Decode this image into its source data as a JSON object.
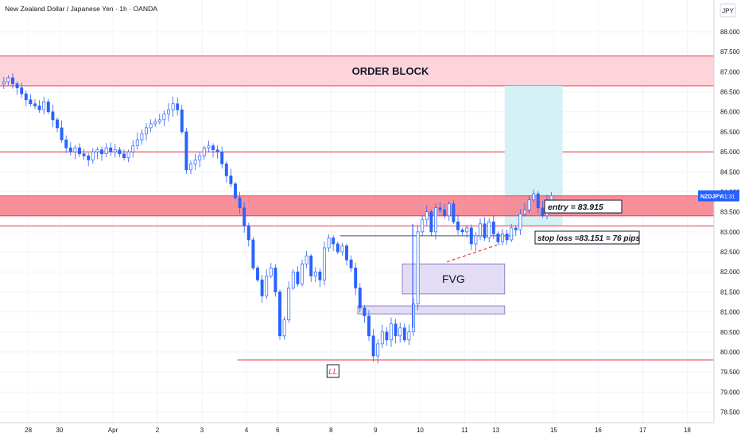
{
  "header": {
    "title": "New Zealand Dollar / Japanese Yen · 1h · OANDA",
    "currency": "JPY"
  },
  "colors": {
    "up": "#2962ff",
    "down": "#2962ff",
    "zone_line": "#f23645",
    "order_block_fill": "#fcd4da",
    "entry_zone_fill": "#f77c8a",
    "target_fill": "#d4f1f5",
    "fvg_fill": "#e2dcf5",
    "fvg_border": "#7b6bb5"
  },
  "chart_data": {
    "type": "candlestick",
    "title": "New Zealand Dollar / Japanese Yen · 1h · OANDA",
    "symbol": "NZDJPY",
    "countdown": "41:31",
    "ylim": [
      78.25,
      88.25
    ],
    "y_ticks": [
      "88.000",
      "87.500",
      "87.000",
      "86.500",
      "86.000",
      "85.500",
      "85.000",
      "84.500",
      "84.000",
      "83.500",
      "83.000",
      "82.500",
      "82.000",
      "81.500",
      "81.000",
      "80.500",
      "80.000",
      "79.500",
      "79.000",
      "78.500"
    ],
    "x_ticks": [
      {
        "label": "28",
        "bar": 6
      },
      {
        "label": "30",
        "bar": 13
      },
      {
        "label": "Apr",
        "bar": 25
      },
      {
        "label": "2",
        "bar": 35
      },
      {
        "label": "3",
        "bar": 45
      },
      {
        "label": "4",
        "bar": 55
      },
      {
        "label": "6",
        "bar": 62
      },
      {
        "label": "8",
        "bar": 74
      },
      {
        "label": "9",
        "bar": 84
      },
      {
        "label": "10",
        "bar": 94
      },
      {
        "label": "11",
        "bar": 104
      },
      {
        "label": "13",
        "bar": 111
      },
      {
        "label": "15",
        "bar": 124
      },
      {
        "label": "16",
        "bar": 134
      },
      {
        "label": "17",
        "bar": 144
      },
      {
        "label": "18",
        "bar": 154
      }
    ],
    "bars_visible": 164,
    "series": [
      {
        "name": "NZDJPY",
        "close_path": [
          86.75,
          86.85,
          86.7,
          86.6,
          86.45,
          86.3,
          86.2,
          86.15,
          86.05,
          86.25,
          86.0,
          85.8,
          85.6,
          85.3,
          85.1,
          85.0,
          85.1,
          84.95,
          84.9,
          84.8,
          85.0,
          85.05,
          84.95,
          85.1,
          85.0,
          85.05,
          84.95,
          84.85,
          85.0,
          85.15,
          85.3,
          85.45,
          85.6,
          85.7,
          85.75,
          85.8,
          85.95,
          86.05,
          86.2,
          86.05,
          85.5,
          84.55,
          84.7,
          84.8,
          84.9,
          85.1,
          85.15,
          85.05,
          85.0,
          84.7,
          84.4,
          84.2,
          83.85,
          83.6,
          83.15,
          82.8,
          82.1,
          81.8,
          81.4,
          81.9,
          82.1,
          81.5,
          80.4,
          80.8,
          81.6,
          82.0,
          81.7,
          82.2,
          82.4,
          81.9,
          82.0,
          81.8,
          82.6,
          82.85,
          82.7,
          82.5,
          82.65,
          82.3,
          82.1,
          81.6,
          81.1,
          80.9,
          80.4,
          79.9,
          80.2,
          80.5,
          80.3,
          80.7,
          80.4,
          80.6,
          80.3,
          80.5,
          81.2,
          83.0,
          83.3,
          83.5,
          83.0,
          83.6,
          83.55,
          83.4,
          83.7,
          83.25,
          83.05,
          83.0,
          83.1,
          82.7,
          82.9,
          83.2,
          82.85,
          83.25,
          82.95,
          82.75,
          82.95,
          82.8,
          83.1,
          83.05,
          83.45,
          83.55,
          83.8,
          83.95,
          83.6,
          83.4,
          83.8,
          83.9
        ],
        "ohlc": []
      }
    ],
    "annotations": {
      "order_block": {
        "label": "ORDER BLOCK",
        "low": 86.65,
        "high": 87.4
      },
      "level_85": 85.0,
      "entry_zone": {
        "low": 83.4,
        "high": 83.9
      },
      "entry_line": 83.915,
      "lower_zone_line": 83.151,
      "entry_label": "entry = 83.915",
      "stop_label": "stop loss =83.151 =  76 pips",
      "target_box": {
        "low": 83.15,
        "high": 86.65,
        "bar_start": 113,
        "bar_end": 126
      },
      "fvg": {
        "label": "FVG",
        "low": 81.45,
        "high": 82.2,
        "bar_start": 90,
        "bar_end": 113
      },
      "fvg_small": {
        "low": 80.95,
        "high": 81.15,
        "bar_start": 80,
        "bar_end": 113
      },
      "ll_label": "LL",
      "ll_level": 79.8,
      "ll_bar": 74,
      "h_line_82_9": 82.9
    }
  }
}
